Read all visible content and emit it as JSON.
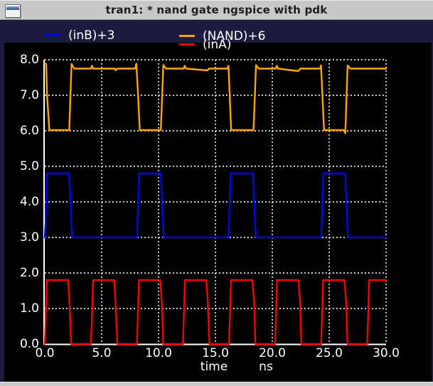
{
  "window": {
    "title": "tran1: * nand gate ngspice with pdk"
  },
  "colors": {
    "titlebar": "#c8c8c8",
    "window_border": "#1c1c3f",
    "plot_background": "#000000",
    "grid": "#ffffff",
    "axis_text": "#ffffff",
    "inB_trace": "#0000ff",
    "nand_trace": "#ffa500",
    "inA_trace": "#ff0000"
  },
  "chart_data": {
    "type": "line",
    "title": "tran1: * nand gate ngspice with pdk",
    "xlabel": "time",
    "xunit": "ns",
    "ylabel": "",
    "xlim": [
      0.0,
      30.0
    ],
    "ylim": [
      0.0,
      8.0
    ],
    "grid": "dotted",
    "legend_position": "top",
    "xticks": {
      "values": [
        0,
        5,
        10,
        15,
        20,
        25,
        30
      ],
      "labels": [
        "0.0",
        "5.0",
        "10.0",
        "15.0",
        "20.0",
        "25.0",
        "30.0"
      ]
    },
    "yticks": {
      "values": [
        0,
        1,
        2,
        3,
        4,
        5,
        6,
        7,
        8
      ],
      "labels": [
        "0.0",
        "1.0",
        "2.0",
        "3.0",
        "4.0",
        "5.0",
        "6.0",
        "7.0",
        "8.0"
      ]
    },
    "series": [
      {
        "name": "inB",
        "legend_label": "(inB)+3",
        "color": "#0000ff",
        "offset": 3.0,
        "low": 3.0,
        "high": 4.8,
        "points": [
          [
            0,
            3.0
          ],
          [
            0.07,
            3.4
          ],
          [
            0.2,
            4.8
          ],
          [
            2.1,
            4.8
          ],
          [
            2.2,
            4.4
          ],
          [
            2.4,
            3.0
          ],
          [
            8.1,
            3.0
          ],
          [
            8.3,
            4.8
          ],
          [
            10.2,
            4.8
          ],
          [
            10.45,
            3.0
          ],
          [
            16.15,
            3.0
          ],
          [
            16.35,
            4.8
          ],
          [
            18.3,
            4.8
          ],
          [
            18.55,
            3.0
          ],
          [
            24.3,
            3.0
          ],
          [
            24.5,
            4.8
          ],
          [
            26.4,
            4.8
          ],
          [
            26.65,
            3.0
          ],
          [
            30,
            3.0
          ]
        ]
      },
      {
        "name": "NAND",
        "legend_label": "(NAND)+6",
        "color": "#ffa500",
        "offset": 6.0,
        "low": 6.02,
        "high": 7.75,
        "points": [
          [
            0,
            7.9
          ],
          [
            0.12,
            7.88
          ],
          [
            0.2,
            7.0
          ],
          [
            0.4,
            6.02
          ],
          [
            2.15,
            6.02
          ],
          [
            2.35,
            7.88
          ],
          [
            2.6,
            7.75
          ],
          [
            4.05,
            7.75
          ],
          [
            4.15,
            7.83
          ],
          [
            4.25,
            7.75
          ],
          [
            6.15,
            7.75
          ],
          [
            6.22,
            7.7
          ],
          [
            6.35,
            7.75
          ],
          [
            7.95,
            7.75
          ],
          [
            8.05,
            7.89
          ],
          [
            8.2,
            7.0
          ],
          [
            8.35,
            6.02
          ],
          [
            10.2,
            6.02
          ],
          [
            10.42,
            7.85
          ],
          [
            10.65,
            7.75
          ],
          [
            12.2,
            7.75
          ],
          [
            12.3,
            7.83
          ],
          [
            12.4,
            7.75
          ],
          [
            14.3,
            7.7
          ],
          [
            14.42,
            7.75
          ],
          [
            16.05,
            7.75
          ],
          [
            16.15,
            7.83
          ],
          [
            16.38,
            6.02
          ],
          [
            18.35,
            6.02
          ],
          [
            18.57,
            7.85
          ],
          [
            18.8,
            7.75
          ],
          [
            20.3,
            7.75
          ],
          [
            20.4,
            7.83
          ],
          [
            20.5,
            7.75
          ],
          [
            22.3,
            7.68
          ],
          [
            22.45,
            7.75
          ],
          [
            24.2,
            7.75
          ],
          [
            24.28,
            7.84
          ],
          [
            24.55,
            6.02
          ],
          [
            26.3,
            6.02
          ],
          [
            26.42,
            5.93
          ],
          [
            26.62,
            7.84
          ],
          [
            26.85,
            7.75
          ],
          [
            30,
            7.75
          ]
        ]
      },
      {
        "name": "inA",
        "legend_label": "(inA)",
        "color": "#ff0000",
        "offset": 0.0,
        "low": 0.0,
        "high": 1.8,
        "points": [
          [
            0,
            0.0
          ],
          [
            0.06,
            0.55
          ],
          [
            0.18,
            1.8
          ],
          [
            2.05,
            1.8
          ],
          [
            2.15,
            1.35
          ],
          [
            2.32,
            0.0
          ],
          [
            4.05,
            0.0
          ],
          [
            4.13,
            0.6
          ],
          [
            4.25,
            1.8
          ],
          [
            6.1,
            1.8
          ],
          [
            6.2,
            1.3
          ],
          [
            6.38,
            0.0
          ],
          [
            8.1,
            0.0
          ],
          [
            8.28,
            1.8
          ],
          [
            10.15,
            1.8
          ],
          [
            10.28,
            1.2
          ],
          [
            10.42,
            0.0
          ],
          [
            12.15,
            0.0
          ],
          [
            12.32,
            1.8
          ],
          [
            14.2,
            1.8
          ],
          [
            14.32,
            1.25
          ],
          [
            14.48,
            0.0
          ],
          [
            16.2,
            0.0
          ],
          [
            16.37,
            1.8
          ],
          [
            18.25,
            1.8
          ],
          [
            18.4,
            1.2
          ],
          [
            18.52,
            0.0
          ],
          [
            20.25,
            0.0
          ],
          [
            20.42,
            1.8
          ],
          [
            22.3,
            1.8
          ],
          [
            22.42,
            1.3
          ],
          [
            22.56,
            0.0
          ],
          [
            24.3,
            0.0
          ],
          [
            24.47,
            1.8
          ],
          [
            26.35,
            1.8
          ],
          [
            26.48,
            1.2
          ],
          [
            26.62,
            0.0
          ],
          [
            28.35,
            0.0
          ],
          [
            28.52,
            1.8
          ],
          [
            30,
            1.8
          ]
        ]
      }
    ]
  }
}
